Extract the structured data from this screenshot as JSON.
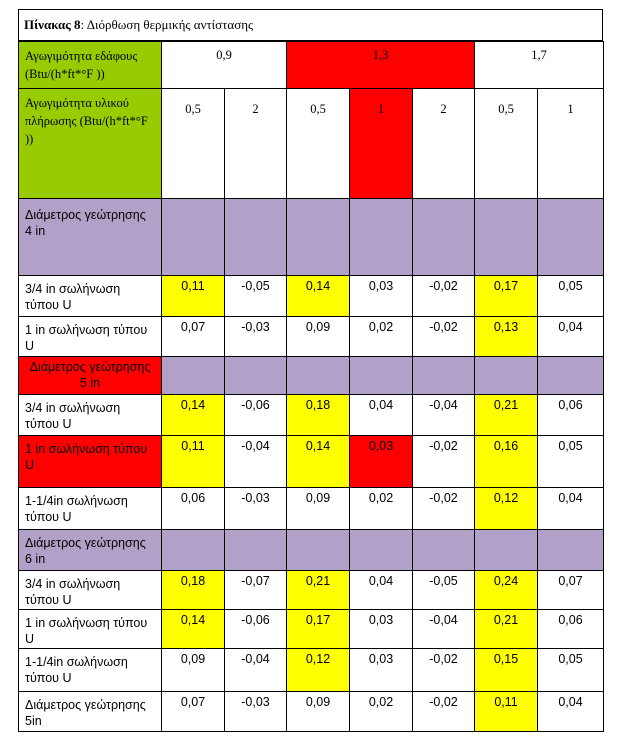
{
  "caption": {
    "label": "Πίνακας 8",
    "text": ": Διόρθωση θερμικής αντίστασης"
  },
  "header": {
    "soil_label": "Αγωγιμότητα εδάφους (Btu/(h*ft*°F ))",
    "soil_values": [
      "0,9",
      "1,3",
      "1,7"
    ],
    "fill_label": "Αγωγιμότητα υλικού πλήρωσης (Btu/(h*ft*°F ))",
    "fill_values": [
      "0,5",
      "2",
      "0,5",
      "1",
      "2",
      "0,5",
      "1"
    ]
  },
  "sections": [
    {
      "title": "Διάμετρος γεώτρησης 4 in",
      "rows": [
        {
          "label": "3/4 in σωλήνωση τύπου U",
          "values": [
            "0,11",
            "-0,05",
            "0,14",
            "0,03",
            "-0,02",
            "0,17",
            "0,05"
          ]
        },
        {
          "label": "1 in σωλήνωση τύπου U",
          "values": [
            "0,07",
            "-0,03",
            "0,09",
            "0,02",
            "-0,02",
            "0,13",
            "0,04"
          ]
        }
      ]
    },
    {
      "title": "Διάμετρος γεώτρησης 5 in",
      "rows": [
        {
          "label": "3/4 in σωλήνωση τύπου U",
          "values": [
            "0,14",
            "-0,06",
            "0,18",
            "0,04",
            "-0,04",
            "0,21",
            "0,06"
          ]
        },
        {
          "label": "1 in σωλήνωση τύπου U",
          "values": [
            "0,11",
            "-0,04",
            "0,14",
            "0,03",
            "-0,02",
            "0,16",
            "0,05"
          ]
        },
        {
          "label": "1-1/4in σωλήνωση τύπου U",
          "values": [
            "0,06",
            "-0,03",
            "0,09",
            "0,02",
            "-0,02",
            "0,12",
            "0,04"
          ]
        }
      ]
    },
    {
      "title": "Διάμετρος γεώτρησης 6 in",
      "rows": [
        {
          "label": "3/4 in σωλήνωση τύπου U",
          "values": [
            "0,18",
            "-0,07",
            "0,21",
            "0,04",
            "-0,05",
            "0,24",
            "0,07"
          ]
        },
        {
          "label": "1 in σωλήνωση τύπου U",
          "values": [
            "0,14",
            "-0,06",
            "0,17",
            "0,03",
            "-0,04",
            "0,21",
            "0,06"
          ]
        },
        {
          "label": "1-1/4in σωλήνωση τύπου U",
          "values": [
            "0,09",
            "-0,04",
            "0,12",
            "0,03",
            "-0,02",
            "0,15",
            "0,05"
          ]
        },
        {
          "label": "Διάμετρος γεώτρησης 5in",
          "values": [
            "0,07",
            "-0,03",
            "0,09",
            "0,02",
            "-0,02",
            "0,11",
            "0,04"
          ]
        }
      ]
    }
  ],
  "colors": {
    "green": "#99cc00",
    "red": "#ff0000",
    "yellow": "#ffff00",
    "purple": "#b1a0c7"
  }
}
